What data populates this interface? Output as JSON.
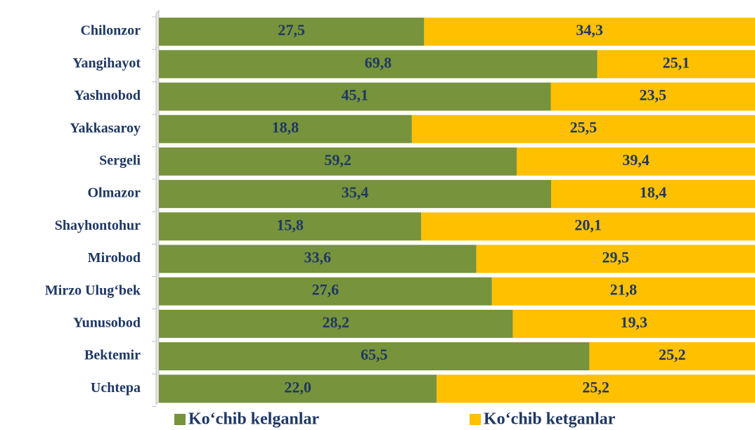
{
  "chart_data": {
    "type": "bar",
    "orientation": "horizontal",
    "stacked": "percent",
    "categories": [
      "Chilonzor",
      "Yangihayot",
      "Yashnobod",
      "Yakkasaroy",
      "Sergeli",
      "Olmazor",
      "Shayhontohur",
      "Mirobod",
      "Mirzo Ulug‘bek",
      "Yunusobod",
      "Bektemir",
      "Uchtepa"
    ],
    "series": [
      {
        "name": "Ko‘chib kelganlar",
        "color": "#77933c",
        "values": [
          27.5,
          69.8,
          45.1,
          18.8,
          59.2,
          35.4,
          15.8,
          33.6,
          27.6,
          28.2,
          65.5,
          22.0
        ],
        "value_labels": [
          "27,5",
          "69,8",
          "45,1",
          "18,8",
          "59,2",
          "35,4",
          "15,8",
          "33,6",
          "27,6",
          "28,2",
          "65,5",
          "22,0"
        ]
      },
      {
        "name": "Ko‘chib ketganlar",
        "color": "#ffc000",
        "values": [
          34.3,
          25.1,
          23.5,
          25.5,
          39.4,
          18.4,
          20.1,
          29.5,
          21.8,
          19.3,
          25.2,
          25.2
        ],
        "value_labels": [
          "34,3",
          "25,1",
          "23,5",
          "25,5",
          "39,4",
          "18,4",
          "20,1",
          "29,5",
          "21,8",
          "19,3",
          "25,2",
          "25,2"
        ]
      }
    ],
    "legend": "bottom"
  }
}
